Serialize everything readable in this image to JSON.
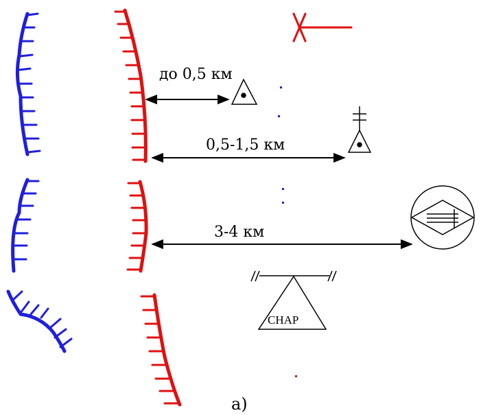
{
  "labels": {
    "dist_1": "до 0,5 км",
    "dist_2": "0,5-1,5 км",
    "dist_3": "3-4 км",
    "artillery": "СНАР",
    "caption": "а)"
  },
  "colors": {
    "friendly_line": "#1f1fdc",
    "enemy_line": "#e01010",
    "black": "#000000"
  },
  "icons": {
    "observation_post": "triangle-with-dot",
    "command_observation_post": "triangle-with-dot-and-cross",
    "headquarters": "circle-with-diamond",
    "artillery_position": "triangle-on-beam",
    "enemy_marker": "red-x-with-arrow"
  }
}
